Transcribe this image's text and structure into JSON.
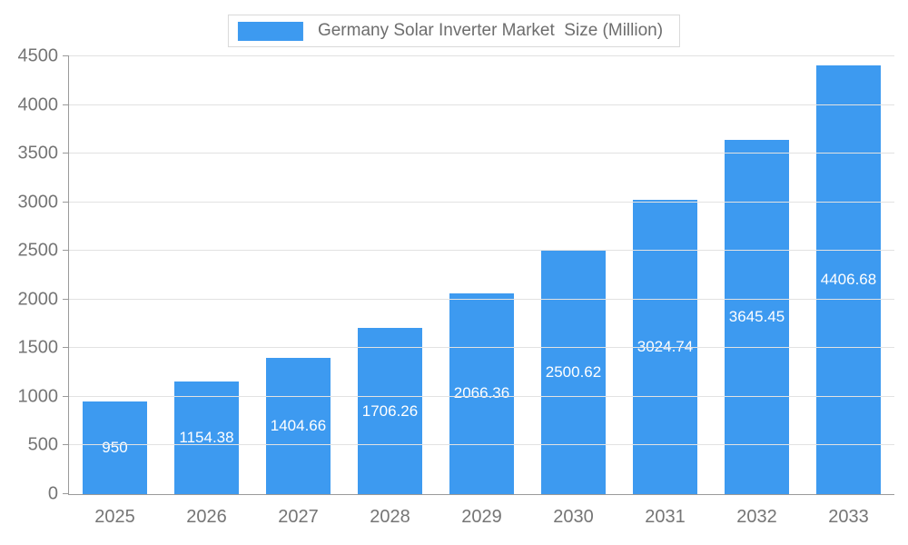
{
  "legend": {
    "label": "Germany Solar Inverter Market  Size (Million)"
  },
  "chart_data": {
    "type": "bar",
    "title": "Germany Solar Inverter Market  Size (Million)",
    "categories": [
      "2025",
      "2026",
      "2027",
      "2028",
      "2029",
      "2030",
      "2031",
      "2032",
      "2033"
    ],
    "values": [
      950,
      1154.38,
      1404.66,
      1706.26,
      2066.36,
      2500.62,
      3024.74,
      3645.45,
      4406.68
    ],
    "value_labels": [
      "950",
      "1154.38",
      "1404.66",
      "1706.26",
      "2066.36",
      "2500.62",
      "3024.74",
      "3645.45",
      "4406.68"
    ],
    "xlabel": "",
    "ylabel": "",
    "ylim": [
      0,
      4500
    ],
    "ytick_step": 500,
    "ytick_labels": [
      "0",
      "500",
      "1000",
      "1500",
      "2000",
      "2500",
      "3000",
      "3500",
      "4000",
      "4500"
    ],
    "grid": true,
    "legend_position": "top",
    "bar_color": "#3d9af0",
    "grid_color": "#e2e2e2",
    "axis_color": "#9a9a9a",
    "label_color": "#757575",
    "value_label_color": "#ffffff"
  }
}
